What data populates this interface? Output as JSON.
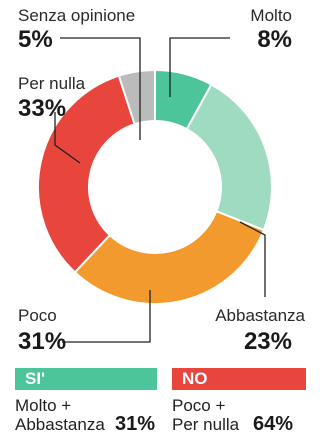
{
  "chart_data": {
    "type": "pie",
    "variant": "donut",
    "slices": [
      {
        "label": "Molto",
        "value": 8,
        "display": "8%",
        "color": "#4cc59a"
      },
      {
        "label": "Abbastanza",
        "value": 23,
        "display": "23%",
        "color": "#9fdbc0"
      },
      {
        "label": "Poco",
        "value": 31,
        "display": "31%",
        "color": "#f29a2e"
      },
      {
        "label": "Per nulla",
        "value": 33,
        "display": "33%",
        "color": "#e8453c"
      },
      {
        "label": "Senza opinione",
        "value": 5,
        "display": "5%",
        "color": "#bbbbbb"
      }
    ]
  },
  "summary": {
    "yes": {
      "tag": "SI'",
      "label_line1": "Molto +",
      "label_line2": "Abbastanza",
      "value": "31%",
      "color": "#4cc59a"
    },
    "no": {
      "tag": "NO",
      "label_line1": "Poco +",
      "label_line2": "Per nulla",
      "value": "64%",
      "color": "#e8453c"
    }
  }
}
